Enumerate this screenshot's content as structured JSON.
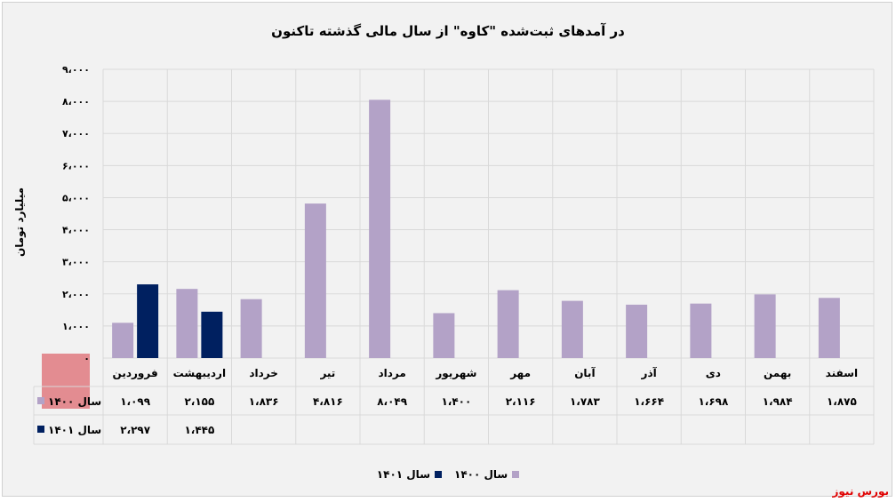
{
  "chart_data": {
    "type": "bar",
    "title": "در آمدهای ثبت‌شده \"کاوه\" از سال مالی گذشته تاکنون",
    "ylabel": "میلیارد تومان",
    "xlabel": "",
    "ylim": [
      0,
      9000
    ],
    "yticks": [
      0,
      1000,
      2000,
      3000,
      4000,
      5000,
      6000,
      7000,
      8000,
      9000
    ],
    "ytick_labels": [
      "۰",
      "۱،۰۰۰",
      "۲،۰۰۰",
      "۳،۰۰۰",
      "۴،۰۰۰",
      "۵،۰۰۰",
      "۶،۰۰۰",
      "۷،۰۰۰",
      "۸،۰۰۰",
      "۹،۰۰۰"
    ],
    "categories": [
      "فروردین",
      "اردیبهشت",
      "خرداد",
      "تیر",
      "مرداد",
      "شهریور",
      "مهر",
      "آبان",
      "آذر",
      "دی",
      "بهمن",
      "اسفند"
    ],
    "series": [
      {
        "name": "سال ۱۴۰۰",
        "color": "#b3a2c7",
        "values": [
          1099,
          2155,
          1836,
          4816,
          8049,
          1400,
          2116,
          1783,
          1664,
          1698,
          1984,
          1875
        ],
        "labels": [
          "۱،۰۹۹",
          "۲،۱۵۵",
          "۱،۸۳۶",
          "۴،۸۱۶",
          "۸،۰۴۹",
          "۱،۴۰۰",
          "۲،۱۱۶",
          "۱،۷۸۳",
          "۱،۶۶۴",
          "۱،۶۹۸",
          "۱،۹۸۴",
          "۱،۸۷۵"
        ]
      },
      {
        "name": "سال ۱۴۰۱",
        "color": "#002060",
        "values": [
          2297,
          1445,
          null,
          null,
          null,
          null,
          null,
          null,
          null,
          null,
          null,
          null
        ],
        "labels": [
          "۲،۲۹۷",
          "۱،۴۴۵",
          "",
          "",
          "",
          "",
          "",
          "",
          "",
          "",
          "",
          ""
        ]
      }
    ],
    "grid": true,
    "legend": "bottom",
    "data_table": true
  },
  "brand": "بورس نیوز"
}
